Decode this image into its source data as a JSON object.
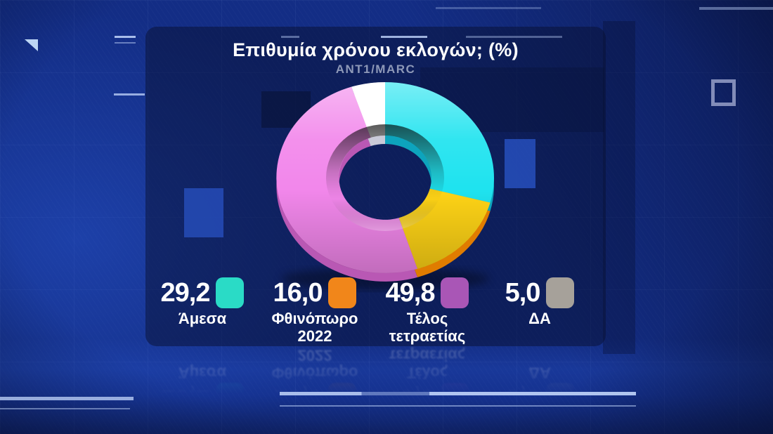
{
  "chart_data": {
    "type": "pie",
    "variant": "donut-3d",
    "title": "Επιθυμία χρόνου εκλογών; (%)",
    "subtitle": "ANT1/MARC",
    "rotation_deg": 0,
    "direction": "clockwise",
    "legend_position": "bottom",
    "segments": [
      {
        "label": "Άμεσα",
        "value": 29.2,
        "value_text": "29,2",
        "slice_color": "#1fe3ef",
        "side_color": "#0da4bd",
        "legend_color": "#2adbc6"
      },
      {
        "label": "Φθινόπωρο 2022",
        "value": 16.0,
        "value_text": "16,0",
        "slice_color": "#ffd416",
        "side_color": "#e07c00",
        "legend_color": "#f1861a"
      },
      {
        "label": "Τέλος τετραετίας",
        "value": 49.8,
        "value_text": "49,8",
        "slice_color": "#f287eb",
        "side_color": "#b958b4",
        "legend_color": "#a956b6"
      },
      {
        "label": "ΔΑ",
        "value": 5.0,
        "value_text": "5,0",
        "slice_color": "#ffffff",
        "side_color": "#c9cad8",
        "legend_color": "#a6a19a"
      }
    ]
  },
  "background": {
    "base_color": "#132d85",
    "panel_color": "rgba(8,16,50,0.5)",
    "deco_line_color": "#b9cdf5",
    "triangle_color": "#bcd6f4",
    "square_outline_color": "#969fc7"
  }
}
